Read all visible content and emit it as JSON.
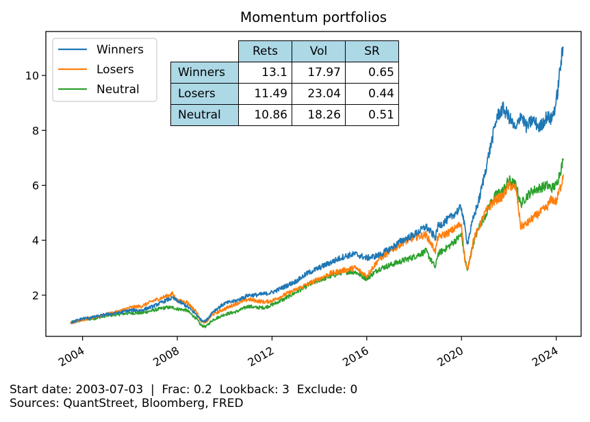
{
  "chart_data": {
    "type": "line",
    "title": "Momentum portfolios",
    "xlabel": "",
    "ylabel": "",
    "x_ticks": [
      2004,
      2008,
      2012,
      2016,
      2020,
      2024
    ],
    "y_ticks": [
      2,
      4,
      6,
      8,
      10
    ],
    "xlim": [
      2002.45,
      2025.05
    ],
    "ylim": [
      0.5,
      11.6
    ],
    "grid": false,
    "legend_position": "top-left",
    "series": [
      {
        "name": "Winners",
        "color": "#1f77b4",
        "x": [
          2003.5,
          2004.0,
          2004.5,
          2005.0,
          2005.5,
          2006.0,
          2006.5,
          2007.0,
          2007.5,
          2007.8,
          2008.0,
          2008.4,
          2008.8,
          2009.0,
          2009.2,
          2009.5,
          2010.0,
          2010.5,
          2011.0,
          2011.3,
          2011.7,
          2012.0,
          2012.5,
          2013.0,
          2013.5,
          2014.0,
          2014.5,
          2015.0,
          2015.5,
          2016.0,
          2016.5,
          2017.0,
          2017.5,
          2018.0,
          2018.5,
          2018.9,
          2019.0,
          2019.5,
          2020.0,
          2020.15,
          2020.25,
          2020.5,
          2020.75,
          2021.0,
          2021.25,
          2021.5,
          2021.75,
          2022.0,
          2022.3,
          2022.5,
          2022.75,
          2023.0,
          2023.3,
          2023.6,
          2023.8,
          2024.0,
          2024.2,
          2024.3
        ],
        "y": [
          1.0,
          1.15,
          1.2,
          1.3,
          1.35,
          1.45,
          1.45,
          1.6,
          1.8,
          1.9,
          1.8,
          1.6,
          1.3,
          1.1,
          1.05,
          1.4,
          1.7,
          1.8,
          2.0,
          2.0,
          2.05,
          2.1,
          2.3,
          2.5,
          2.8,
          3.0,
          3.2,
          3.4,
          3.5,
          3.35,
          3.45,
          3.7,
          4.0,
          4.2,
          4.5,
          4.1,
          4.5,
          4.8,
          5.2,
          4.4,
          3.9,
          4.8,
          5.5,
          6.5,
          7.5,
          8.5,
          8.8,
          8.5,
          8.0,
          8.6,
          8.1,
          8.4,
          8.1,
          8.5,
          8.4,
          9.0,
          10.5,
          11.0
        ]
      },
      {
        "name": "Losers",
        "color": "#ff7f0e",
        "x": [
          2003.5,
          2004.0,
          2004.5,
          2005.0,
          2005.5,
          2006.0,
          2006.5,
          2007.0,
          2007.5,
          2007.8,
          2008.0,
          2008.4,
          2008.8,
          2009.0,
          2009.2,
          2009.5,
          2010.0,
          2010.5,
          2011.0,
          2011.3,
          2011.7,
          2012.0,
          2012.5,
          2013.0,
          2013.5,
          2014.0,
          2014.5,
          2015.0,
          2015.5,
          2016.0,
          2016.5,
          2017.0,
          2017.5,
          2018.0,
          2018.5,
          2018.9,
          2019.0,
          2019.5,
          2020.0,
          2020.15,
          2020.25,
          2020.5,
          2020.75,
          2021.0,
          2021.25,
          2021.5,
          2021.75,
          2022.0,
          2022.3,
          2022.5,
          2022.75,
          2023.0,
          2023.3,
          2023.6,
          2023.8,
          2024.0,
          2024.2,
          2024.3
        ],
        "y": [
          1.0,
          1.1,
          1.2,
          1.3,
          1.4,
          1.55,
          1.6,
          1.8,
          1.95,
          2.05,
          1.8,
          1.75,
          1.4,
          1.05,
          1.0,
          1.3,
          1.5,
          1.7,
          1.85,
          1.8,
          1.75,
          1.8,
          2.0,
          2.2,
          2.4,
          2.6,
          2.8,
          2.9,
          3.0,
          2.7,
          3.3,
          3.6,
          3.9,
          4.1,
          4.2,
          3.6,
          4.1,
          4.3,
          4.6,
          3.2,
          2.9,
          4.0,
          4.5,
          5.0,
          5.3,
          5.5,
          5.6,
          6.0,
          5.9,
          4.5,
          4.6,
          4.8,
          5.0,
          5.2,
          5.5,
          5.4,
          6.0,
          6.4
        ]
      },
      {
        "name": "Neutral",
        "color": "#2ca02c",
        "x": [
          2003.5,
          2004.0,
          2004.5,
          2005.0,
          2005.5,
          2006.0,
          2006.5,
          2007.0,
          2007.5,
          2007.8,
          2008.0,
          2008.4,
          2008.8,
          2009.0,
          2009.2,
          2009.5,
          2010.0,
          2010.5,
          2011.0,
          2011.3,
          2011.7,
          2012.0,
          2012.5,
          2013.0,
          2013.5,
          2014.0,
          2014.5,
          2015.0,
          2015.5,
          2016.0,
          2016.5,
          2017.0,
          2017.5,
          2018.0,
          2018.5,
          2018.9,
          2019.0,
          2019.5,
          2020.0,
          2020.15,
          2020.25,
          2020.5,
          2020.75,
          2021.0,
          2021.25,
          2021.5,
          2021.75,
          2022.0,
          2022.3,
          2022.5,
          2022.75,
          2023.0,
          2023.3,
          2023.6,
          2023.8,
          2024.0,
          2024.2,
          2024.3
        ],
        "y": [
          1.0,
          1.1,
          1.15,
          1.25,
          1.3,
          1.35,
          1.35,
          1.45,
          1.55,
          1.55,
          1.5,
          1.45,
          1.15,
          0.9,
          0.85,
          1.1,
          1.3,
          1.4,
          1.6,
          1.55,
          1.55,
          1.65,
          1.85,
          2.1,
          2.35,
          2.55,
          2.7,
          2.85,
          2.85,
          2.6,
          2.95,
          3.1,
          3.25,
          3.4,
          3.6,
          3.0,
          3.5,
          3.8,
          4.2,
          3.3,
          2.9,
          3.9,
          4.5,
          4.9,
          5.4,
          5.7,
          5.8,
          6.2,
          6.0,
          5.3,
          5.6,
          5.8,
          5.9,
          6.0,
          5.9,
          6.0,
          6.6,
          6.9
        ]
      }
    ],
    "table": {
      "columns": [
        "Rets",
        "Vol",
        "SR"
      ],
      "rows": [
        {
          "label": "Winners",
          "values": [
            "13.1",
            "17.97",
            "0.65"
          ]
        },
        {
          "label": "Losers",
          "values": [
            "11.49",
            "23.04",
            "0.44"
          ]
        },
        {
          "label": "Neutral",
          "values": [
            "10.86",
            "18.26",
            "0.51"
          ]
        }
      ]
    }
  },
  "footer": {
    "line1": "Start date: 2003-07-03  |  Frac: 0.2  Lookback: 3  Exclude: 0",
    "line2": "Sources: QuantStreet, Bloomberg, FRED"
  }
}
